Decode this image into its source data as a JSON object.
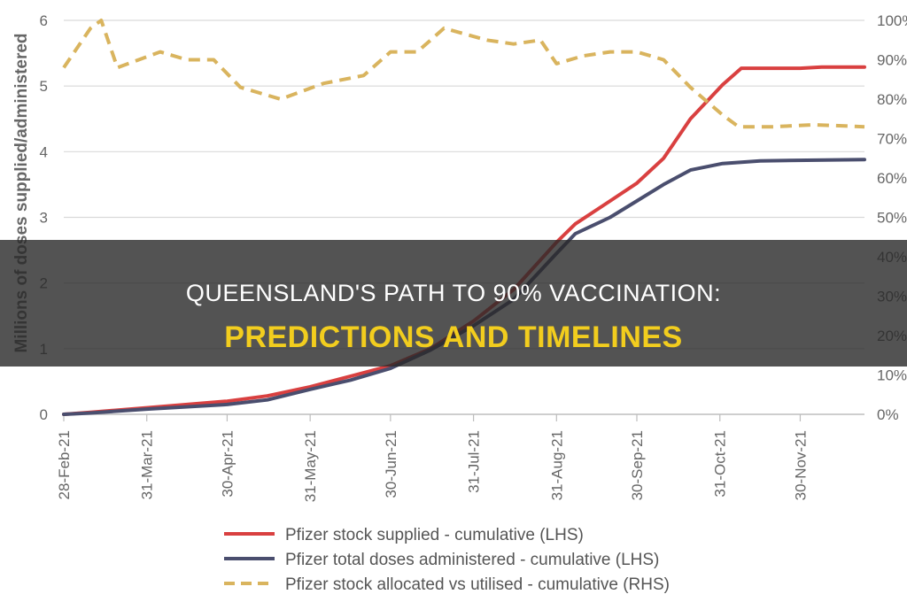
{
  "banner": {
    "line1": "QUEENSLAND'S PATH TO 90% VACCINATION:",
    "line2": "PREDICTIONS AND TIMELINES",
    "line1_color": "#ffffff",
    "line2_color": "#f2cd1e"
  },
  "chart_data": {
    "type": "line",
    "ylabel": "Millions of doses supplied/administered",
    "y_left_range": [
      0,
      6
    ],
    "y_left_ticks": [
      "0",
      "1",
      "2",
      "3",
      "4",
      "5",
      "6"
    ],
    "y_right_range": [
      0,
      100
    ],
    "y_right_ticks": [
      "0%",
      "10%",
      "20%",
      "30%",
      "40%",
      "50%",
      "60%",
      "70%",
      "80%",
      "90%",
      "100%"
    ],
    "x_range": [
      "2021-02-28",
      "2021-12-24"
    ],
    "x_ticks": [
      {
        "date": "2021-02-28",
        "label": "28-Feb-21"
      },
      {
        "date": "2021-03-31",
        "label": "31-Mar-21"
      },
      {
        "date": "2021-04-30",
        "label": "30-Apr-21"
      },
      {
        "date": "2021-05-31",
        "label": "31-May-21"
      },
      {
        "date": "2021-06-30",
        "label": "30-Jun-21"
      },
      {
        "date": "2021-07-31",
        "label": "31-Jul-21"
      },
      {
        "date": "2021-08-31",
        "label": "31-Aug-21"
      },
      {
        "date": "2021-09-30",
        "label": "30-Sep-21"
      },
      {
        "date": "2021-10-31",
        "label": "31-Oct-21"
      },
      {
        "date": "2021-11-30",
        "label": "30-Nov-21"
      }
    ],
    "grid": "horizontal",
    "legend_position": "bottom",
    "series": [
      {
        "name": "Pfizer stock supplied - cumulative (LHS)",
        "axis": "left",
        "color": "#d94040",
        "dash": false,
        "points": [
          [
            "2021-02-28",
            0.0
          ],
          [
            "2021-03-10",
            0.03
          ],
          [
            "2021-03-31",
            0.1
          ],
          [
            "2021-04-30",
            0.2
          ],
          [
            "2021-05-15",
            0.28
          ],
          [
            "2021-05-31",
            0.42
          ],
          [
            "2021-06-15",
            0.58
          ],
          [
            "2021-06-30",
            0.74
          ],
          [
            "2021-07-15",
            1.0
          ],
          [
            "2021-07-31",
            1.42
          ],
          [
            "2021-08-15",
            1.9
          ],
          [
            "2021-08-31",
            2.62
          ],
          [
            "2021-09-07",
            2.9
          ],
          [
            "2021-09-20",
            3.25
          ],
          [
            "2021-09-30",
            3.52
          ],
          [
            "2021-10-10",
            3.9
          ],
          [
            "2021-10-20",
            4.5
          ],
          [
            "2021-11-01",
            5.02
          ],
          [
            "2021-11-08",
            5.27
          ],
          [
            "2021-11-30",
            5.27
          ],
          [
            "2021-12-08",
            5.29
          ],
          [
            "2021-12-24",
            5.29
          ]
        ]
      },
      {
        "name": "Pfizer total doses administered - cumulative (LHS)",
        "axis": "left",
        "color": "#4a4e6e",
        "dash": false,
        "points": [
          [
            "2021-02-28",
            0.0
          ],
          [
            "2021-03-10",
            0.02
          ],
          [
            "2021-03-31",
            0.08
          ],
          [
            "2021-04-30",
            0.15
          ],
          [
            "2021-05-15",
            0.22
          ],
          [
            "2021-05-31",
            0.38
          ],
          [
            "2021-06-15",
            0.52
          ],
          [
            "2021-06-30",
            0.7
          ],
          [
            "2021-07-15",
            0.98
          ],
          [
            "2021-07-31",
            1.35
          ],
          [
            "2021-08-15",
            1.75
          ],
          [
            "2021-08-31",
            2.45
          ],
          [
            "2021-09-07",
            2.75
          ],
          [
            "2021-09-20",
            3.0
          ],
          [
            "2021-09-30",
            3.25
          ],
          [
            "2021-10-10",
            3.5
          ],
          [
            "2021-10-20",
            3.72
          ],
          [
            "2021-11-01",
            3.82
          ],
          [
            "2021-11-15",
            3.86
          ],
          [
            "2021-12-24",
            3.88
          ]
        ]
      },
      {
        "name": "Pfizer stock allocated vs utilised - cumulative (RHS)",
        "axis": "right",
        "color": "#d9b45e",
        "dash": true,
        "points": [
          [
            "2021-02-28",
            88
          ],
          [
            "2021-03-10",
            98
          ],
          [
            "2021-03-14",
            100
          ],
          [
            "2021-03-20",
            88
          ],
          [
            "2021-04-05",
            92
          ],
          [
            "2021-04-15",
            90
          ],
          [
            "2021-04-25",
            90
          ],
          [
            "2021-05-05",
            83
          ],
          [
            "2021-05-20",
            80
          ],
          [
            "2021-06-05",
            84
          ],
          [
            "2021-06-20",
            86
          ],
          [
            "2021-06-30",
            92
          ],
          [
            "2021-07-10",
            92
          ],
          [
            "2021-07-20",
            98
          ],
          [
            "2021-08-05",
            95
          ],
          [
            "2021-08-15",
            94
          ],
          [
            "2021-08-25",
            95
          ],
          [
            "2021-08-31",
            89
          ],
          [
            "2021-09-10",
            91
          ],
          [
            "2021-09-20",
            92
          ],
          [
            "2021-09-30",
            92
          ],
          [
            "2021-10-10",
            90
          ],
          [
            "2021-10-20",
            83
          ],
          [
            "2021-11-01",
            76
          ],
          [
            "2021-11-07",
            73
          ],
          [
            "2021-11-20",
            73
          ],
          [
            "2021-12-05",
            73.5
          ],
          [
            "2021-12-24",
            73
          ]
        ]
      }
    ]
  }
}
